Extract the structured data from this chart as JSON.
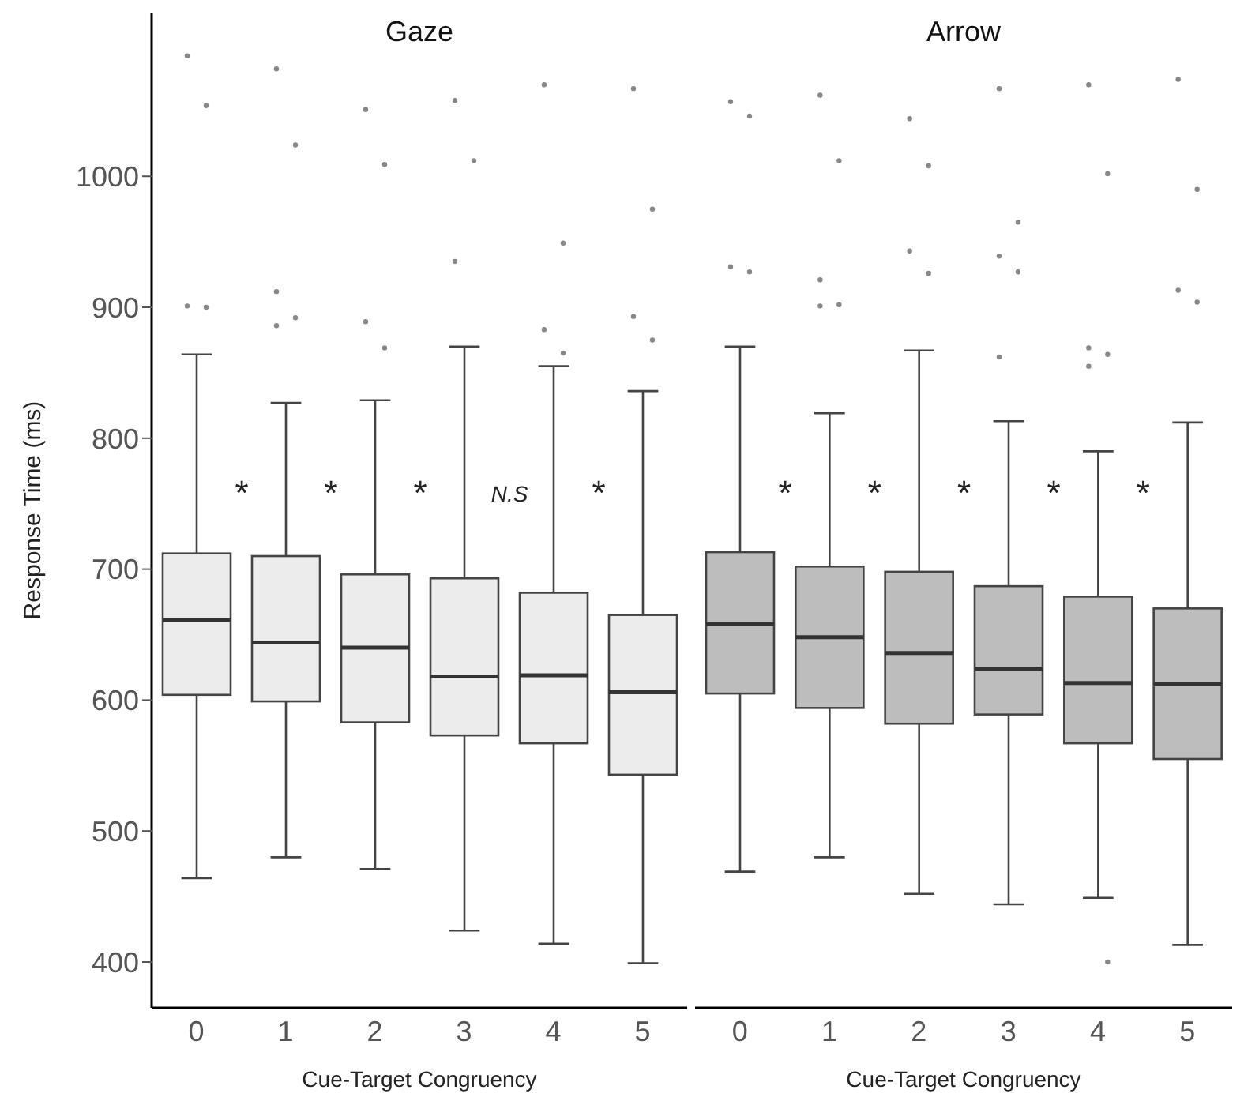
{
  "chart_data": [
    {
      "type": "box",
      "title": "Gaze",
      "xlabel": "Cue-Target Congruency",
      "ylabel": "Response Time (ms)",
      "categories": [
        "0",
        "1",
        "2",
        "3",
        "4",
        "5"
      ],
      "color": "#ececec",
      "ylim": [
        365,
        1125
      ],
      "yticks": [
        400,
        500,
        600,
        700,
        800,
        900,
        1000
      ],
      "boxes": [
        {
          "low": 464,
          "q1": 604,
          "median": 661,
          "q3": 712,
          "high": 864,
          "outliers": [
            1092,
            1054,
            901,
            900
          ]
        },
        {
          "low": 480,
          "q1": 599,
          "median": 644,
          "q3": 710,
          "high": 827,
          "outliers": [
            1082,
            1024,
            912,
            892,
            886
          ]
        },
        {
          "low": 471,
          "q1": 583,
          "median": 640,
          "q3": 696,
          "high": 829,
          "outliers": [
            1051,
            1009,
            889,
            869
          ]
        },
        {
          "low": 424,
          "q1": 573,
          "median": 618,
          "q3": 693,
          "high": 870,
          "outliers": [
            1058,
            1012,
            935
          ]
        },
        {
          "low": 414,
          "q1": 567,
          "median": 619,
          "q3": 682,
          "high": 855,
          "outliers": [
            1070,
            949,
            883,
            865
          ]
        },
        {
          "low": 399,
          "q1": 543,
          "median": 606,
          "q3": 665,
          "high": 836,
          "outliers": [
            1067,
            975,
            893,
            875
          ]
        }
      ],
      "annotations": [
        "*",
        "*",
        "*",
        "N.S",
        "*"
      ]
    },
    {
      "type": "box",
      "title": "Arrow",
      "xlabel": "Cue-Target Congruency",
      "categories": [
        "0",
        "1",
        "2",
        "3",
        "4",
        "5"
      ],
      "color": "#bdbdbd",
      "ylim": [
        365,
        1125
      ],
      "yticks": [
        400,
        500,
        600,
        700,
        800,
        900,
        1000
      ],
      "tick_labels": "x",
      "boxes": [
        {
          "low": 469,
          "q1": 605,
          "median": 658,
          "q3": 713,
          "high": 870,
          "outliers": [
            1057,
            1046,
            931,
            927
          ]
        },
        {
          "low": 480,
          "q1": 594,
          "median": 648,
          "q3": 702,
          "high": 819,
          "outliers": [
            1062,
            1012,
            921,
            902,
            901
          ]
        },
        {
          "low": 452,
          "q1": 582,
          "median": 636,
          "q3": 698,
          "high": 867,
          "outliers": [
            1044,
            1008,
            943,
            926
          ]
        },
        {
          "low": 444,
          "q1": 589,
          "median": 624,
          "q3": 687,
          "high": 813,
          "outliers": [
            1067,
            965,
            939,
            927,
            862
          ]
        },
        {
          "low": 449,
          "q1": 567,
          "median": 613,
          "q3": 679,
          "high": 790,
          "outliers": [
            1070,
            1002,
            869,
            864,
            855,
            400
          ]
        },
        {
          "low": 413,
          "q1": 555,
          "median": 612,
          "q3": 670,
          "high": 812,
          "outliers": [
            1074,
            990,
            913,
            904
          ]
        }
      ],
      "annotations": [
        "*",
        "*",
        "*",
        "*",
        "*"
      ]
    }
  ]
}
